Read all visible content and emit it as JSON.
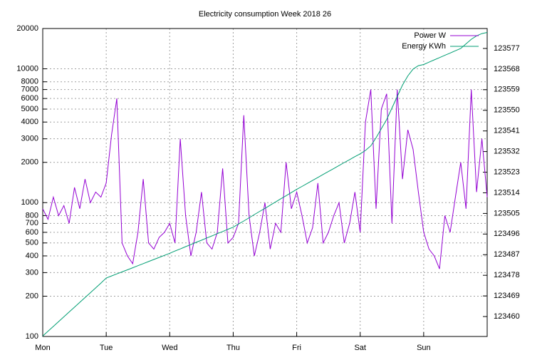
{
  "chart_data": {
    "type": "line",
    "title": "Electricity consumption Week 2018 26",
    "x": [
      0,
      2,
      4,
      6,
      8,
      10,
      12,
      14,
      16,
      18,
      20,
      22,
      24,
      26,
      28,
      30,
      32,
      34,
      36,
      38,
      40,
      42,
      44,
      46,
      48,
      50,
      52,
      54,
      56,
      58,
      60,
      62,
      64,
      66,
      68,
      70,
      72,
      74,
      76,
      78,
      80,
      82,
      84,
      86,
      88,
      90,
      92,
      94,
      96,
      98,
      100,
      102,
      104,
      106,
      108,
      110,
      112,
      114,
      116,
      118,
      120,
      122,
      124,
      126,
      128,
      130,
      132,
      134,
      136,
      138,
      140,
      142,
      144,
      146,
      148,
      150,
      152,
      154,
      156,
      158,
      160,
      162,
      164,
      166,
      168
    ],
    "series": [
      {
        "name": "Power W",
        "color": "#9400d3",
        "axis": "y",
        "values": [
          900,
          750,
          1100,
          800,
          950,
          700,
          1300,
          900,
          1500,
          1000,
          1200,
          1100,
          1400,
          3200,
          6000,
          500,
          400,
          350,
          600,
          1500,
          500,
          450,
          550,
          600,
          700,
          500,
          3000,
          800,
          400,
          600,
          1200,
          500,
          450,
          600,
          1800,
          500,
          550,
          700,
          4500,
          800,
          400,
          600,
          1000,
          450,
          700,
          600,
          2000,
          900,
          1200,
          800,
          500,
          650,
          1400,
          500,
          600,
          800,
          1000,
          500,
          700,
          1200,
          600,
          4000,
          7000,
          900,
          5000,
          6500,
          700,
          7000,
          1500,
          3500,
          2500,
          1200,
          600,
          450,
          400,
          320,
          800,
          600,
          1100,
          2000,
          900,
          7000,
          1200,
          3000,
          1100
        ]
      },
      {
        "name": "Energy KWh",
        "color": "#009e73",
        "axis": "y2",
        "values": [
          123451.5,
          123453.6,
          123455.7,
          123457.8,
          123459.9,
          123462.0,
          123464.1,
          123466.2,
          123468.3,
          123470.4,
          123472.5,
          123474.6,
          123476.8,
          123477.7,
          123478.6,
          123479.5,
          123480.4,
          123481.3,
          123482.2,
          123483.1,
          123484.0,
          123484.9,
          123485.8,
          123486.7,
          123487.6,
          123488.6,
          123489.5,
          123490.5,
          123491.4,
          123492.4,
          123493.3,
          123494.3,
          123495.2,
          123496.2,
          123497.1,
          123498.1,
          123499.0,
          123500.4,
          123501.7,
          123503.1,
          123504.5,
          123505.9,
          123507.2,
          123508.6,
          123510.0,
          123511.4,
          123512.7,
          123514.1,
          123515.5,
          123516.8,
          123518.1,
          123519.4,
          123520.7,
          123522.0,
          123523.3,
          123524.6,
          123525.9,
          123527.2,
          123528.5,
          123529.8,
          123531.0,
          123532.5,
          123534.5,
          123538,
          123542,
          123546,
          123551,
          123556,
          123561,
          123565,
          123568,
          123569.5,
          123570,
          123571,
          123572,
          123573,
          123574,
          123575,
          123576,
          123577,
          123579,
          123581,
          123582.5,
          123583.5,
          123584
        ]
      }
    ],
    "xlim": [
      0,
      168
    ],
    "xticks": [
      {
        "value": 0,
        "label": "Mon"
      },
      {
        "value": 24,
        "label": "Tue"
      },
      {
        "value": 48,
        "label": "Wed"
      },
      {
        "value": 72,
        "label": "Thu"
      },
      {
        "value": 96,
        "label": "Fri"
      },
      {
        "value": 120,
        "label": "Sat"
      },
      {
        "value": 144,
        "label": "Sun"
      }
    ],
    "ylim": [
      100,
      20000
    ],
    "ylog": true,
    "yticks": [
      100,
      200,
      300,
      400,
      500,
      600,
      700,
      800,
      1000,
      2000,
      3000,
      4000,
      5000,
      6000,
      7000,
      8000,
      10000,
      20000
    ],
    "y2lim": [
      123451.3,
      123585.7
    ],
    "y2ticks": [
      123460,
      123469,
      123478,
      123487,
      123496,
      123505,
      123514,
      123523,
      123532,
      123541,
      123550,
      123559,
      123568,
      123577
    ],
    "grid": true,
    "legend": "top-right"
  }
}
